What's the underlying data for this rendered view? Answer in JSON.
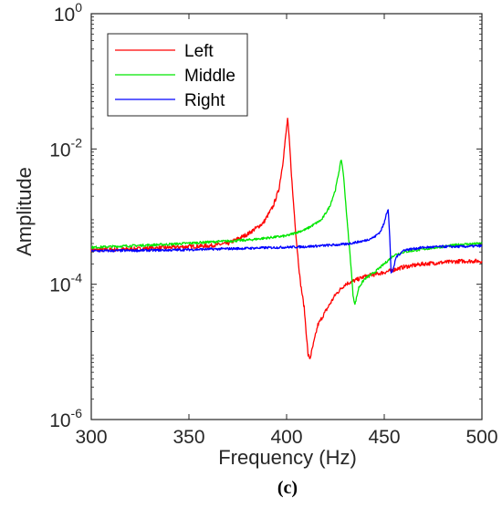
{
  "chart_data": {
    "type": "line",
    "title": "",
    "xlabel": "Frequency (Hz)",
    "ylabel": "Amplitude",
    "panel_label": "(c)",
    "xlim": [
      300,
      500
    ],
    "ylim": [
      1e-06,
      1
    ],
    "yscale": "log",
    "x_ticks": [
      300,
      350,
      400,
      450,
      500
    ],
    "y_ticks": [
      {
        "base": "10",
        "exp": "-6",
        "value": 1e-06
      },
      {
        "base": "10",
        "exp": "-4",
        "value": 0.0001
      },
      {
        "base": "10",
        "exp": "-2",
        "value": 0.01
      },
      {
        "base": "10",
        "exp": "0",
        "value": 1
      }
    ],
    "grid": false,
    "legend_position": "top-left",
    "series": [
      {
        "name": "Left",
        "color": "#ff0000",
        "x": [
          300,
          320,
          340,
          360,
          370,
          380,
          388,
          393,
          396,
          398,
          399.5,
          400.5,
          401.5,
          403,
          405,
          407,
          409,
          410,
          411,
          412,
          414,
          416,
          420,
          425,
          430,
          440,
          450,
          460,
          470,
          480,
          490,
          500
        ],
        "y": [
          0.00032,
          0.00033,
          0.00035,
          0.00037,
          0.0004,
          0.00055,
          0.0008,
          0.0014,
          0.0025,
          0.006,
          0.015,
          0.028,
          0.012,
          0.0025,
          0.00045,
          0.00011,
          4.5e-05,
          2e-05,
          9e-06,
          8e-06,
          1.4e-05,
          2.5e-05,
          4e-05,
          7e-05,
          0.0001,
          0.00013,
          0.00015,
          0.00018,
          0.0002,
          0.00021,
          0.00022,
          0.00022
        ]
      },
      {
        "name": "Middle",
        "color": "#00e600",
        "x": [
          300,
          320,
          340,
          360,
          380,
          400,
          410,
          418,
          422,
          425,
          427,
          428,
          429,
          430,
          431,
          432,
          433,
          434,
          435,
          437,
          440,
          445,
          450,
          455,
          460,
          470,
          480,
          490,
          500
        ],
        "y": [
          0.00035,
          0.00037,
          0.00039,
          0.00042,
          0.00045,
          0.00052,
          0.00065,
          0.0009,
          0.0014,
          0.0025,
          0.005,
          0.007,
          0.0045,
          0.002,
          0.00085,
          0.0004,
          0.00018,
          7e-05,
          5e-05,
          9e-05,
          0.00012,
          0.00015,
          0.0002,
          0.00027,
          0.0003,
          0.00033,
          0.00036,
          0.00039,
          0.0004
        ]
      },
      {
        "name": "Right",
        "color": "#0000ff",
        "x": [
          300,
          340,
          380,
          410,
          430,
          440,
          445,
          448,
          450,
          451,
          452,
          452.8,
          453.5,
          454.5,
          456,
          460,
          470,
          480,
          490,
          500
        ],
        "y": [
          0.00031,
          0.00032,
          0.00034,
          0.00036,
          0.00039,
          0.00044,
          0.0005,
          0.0006,
          0.0008,
          0.0011,
          0.0013,
          0.0005,
          0.00015,
          0.00016,
          0.00025,
          0.00032,
          0.00035,
          0.00036,
          0.00036,
          0.00037
        ]
      }
    ]
  }
}
